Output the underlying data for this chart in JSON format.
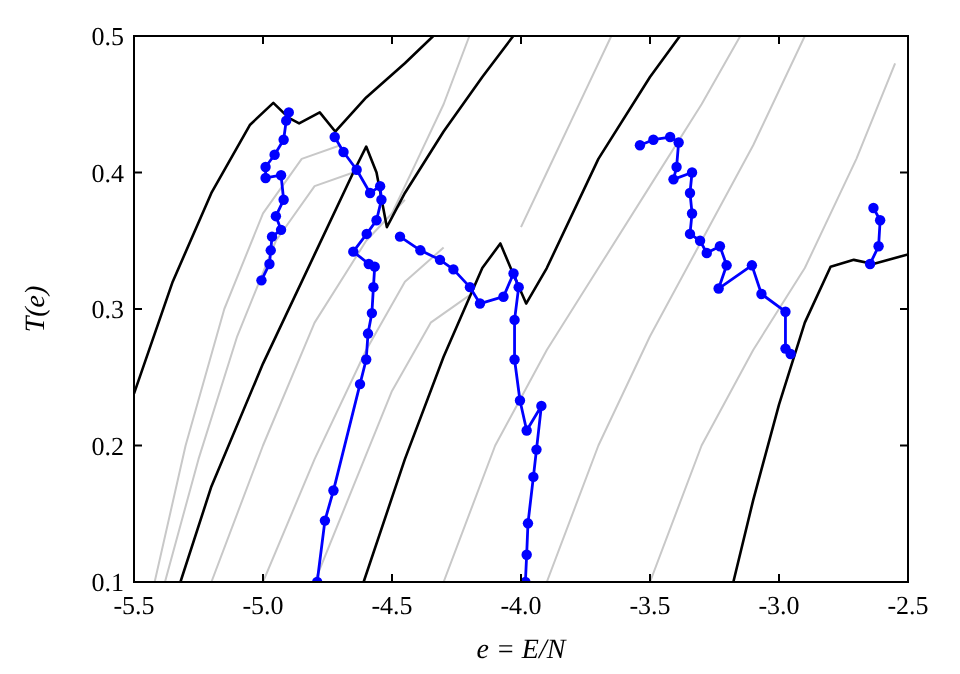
{
  "chart_data": {
    "type": "line",
    "xlabel": "e = E/N",
    "ylabel": "T(e)",
    "xlim": [
      -5.5,
      -2.5
    ],
    "ylim": [
      0.1,
      0.5
    ],
    "xticks": [
      {
        "value": -5.5,
        "label": "-5.5"
      },
      {
        "value": -5,
        "label": "-5.0"
      },
      {
        "value": -4.5,
        "label": "-4.5"
      },
      {
        "value": -4,
        "label": "-4.0"
      },
      {
        "value": -3.5,
        "label": "-3.5"
      },
      {
        "value": -3,
        "label": "-3.0"
      },
      {
        "value": -2.5,
        "label": "-2.5"
      }
    ],
    "yticks": [
      0.1,
      0.2,
      0.3,
      0.4,
      0.5
    ],
    "grid": false,
    "series": [
      {
        "color": "#c8c8c8",
        "marker": "none",
        "x": [
          -5.42,
          -5.3,
          -5.15,
          -5.0,
          -4.85,
          -4.7
        ],
        "values": [
          0.1,
          0.2,
          0.3,
          0.37,
          0.41,
          0.42
        ]
      },
      {
        "color": "#c8c8c8",
        "marker": "none",
        "x": [
          -5.38,
          -5.25,
          -5.1,
          -4.95,
          -4.8,
          -4.65
        ],
        "values": [
          0.1,
          0.19,
          0.28,
          0.35,
          0.39,
          0.4
        ]
      },
      {
        "color": "#c8c8c8",
        "marker": "none",
        "x": [
          -5.2,
          -5.0,
          -4.8,
          -4.6,
          -4.45
        ],
        "values": [
          0.1,
          0.2,
          0.29,
          0.35,
          0.38
        ]
      },
      {
        "color": "#c8c8c8",
        "marker": "none",
        "x": [
          -5.0,
          -4.8,
          -4.6,
          -4.45,
          -4.3
        ],
        "values": [
          0.1,
          0.19,
          0.27,
          0.32,
          0.345
        ]
      },
      {
        "color": "#c8c8c8",
        "marker": "none",
        "x": [
          -4.8,
          -4.65,
          -4.5,
          -4.35,
          -4.2
        ],
        "values": [
          0.1,
          0.17,
          0.24,
          0.29,
          0.31
        ]
      },
      {
        "color": "#c8c8c8",
        "marker": "none",
        "x": [
          -4.5,
          -4.4,
          -4.3,
          -4.2
        ],
        "values": [
          0.37,
          0.41,
          0.45,
          0.5
        ]
      },
      {
        "color": "#c8c8c8",
        "marker": "none",
        "x": [
          -4.0,
          -3.9,
          -3.8,
          -3.65
        ],
        "values": [
          0.36,
          0.4,
          0.44,
          0.5
        ]
      },
      {
        "color": "#c8c8c8",
        "marker": "none",
        "x": [
          -4.3,
          -4.1,
          -3.9,
          -3.7,
          -3.5,
          -3.3,
          -3.15
        ],
        "values": [
          0.1,
          0.2,
          0.27,
          0.33,
          0.39,
          0.45,
          0.5
        ]
      },
      {
        "color": "#c8c8c8",
        "marker": "none",
        "x": [
          -3.9,
          -3.7,
          -3.5,
          -3.3,
          -3.1,
          -2.9
        ],
        "values": [
          0.1,
          0.2,
          0.28,
          0.35,
          0.42,
          0.5
        ]
      },
      {
        "color": "#c8c8c8",
        "marker": "none",
        "x": [
          -3.5,
          -3.3,
          -3.1,
          -2.9,
          -2.7,
          -2.55
        ],
        "values": [
          0.1,
          0.2,
          0.27,
          0.33,
          0.41,
          0.48
        ]
      },
      {
        "color": "#000000",
        "marker": "none",
        "x": [
          -5.5,
          -5.35,
          -5.2,
          -5.05,
          -4.96,
          -4.9,
          -4.86,
          -4.78,
          -4.72,
          -4.6,
          -4.45,
          -4.34
        ],
        "values": [
          0.238,
          0.32,
          0.385,
          0.435,
          0.451,
          0.44,
          0.436,
          0.444,
          0.43,
          0.455,
          0.48,
          0.5
        ]
      },
      {
        "color": "#000000",
        "marker": "none",
        "x": [
          -5.32,
          -5.2,
          -5.0,
          -4.8,
          -4.65,
          -4.6,
          -4.56,
          -4.52,
          -4.45,
          -4.3,
          -4.15,
          -4.03
        ],
        "values": [
          0.1,
          0.17,
          0.26,
          0.34,
          0.4,
          0.419,
          0.4,
          0.36,
          0.385,
          0.43,
          0.47,
          0.5
        ]
      },
      {
        "color": "#000000",
        "marker": "none",
        "x": [
          -4.61,
          -4.45,
          -4.3,
          -4.15,
          -4.08,
          -4.04,
          -3.98,
          -3.9,
          -3.7,
          -3.5,
          -3.384
        ],
        "values": [
          0.1,
          0.19,
          0.265,
          0.33,
          0.348,
          0.33,
          0.304,
          0.33,
          0.41,
          0.47,
          0.5
        ]
      },
      {
        "color": "#000000",
        "marker": "none",
        "x": [
          -3.177,
          -3.1,
          -3.0,
          -2.9,
          -2.8,
          -2.71,
          -2.635,
          -2.5
        ],
        "values": [
          0.1,
          0.16,
          0.23,
          0.29,
          0.331,
          0.336,
          0.333,
          0.34
        ]
      },
      {
        "color": "#0000ff",
        "marker": "circle",
        "x": [
          -4.9,
          -4.91,
          -4.92,
          -4.955,
          -4.99,
          -4.99,
          -4.93,
          -4.92,
          -4.95,
          -4.93,
          -4.965,
          -4.97,
          -4.975,
          -5.006
        ],
        "values": [
          0.444,
          0.438,
          0.424,
          0.413,
          0.404,
          0.396,
          0.398,
          0.38,
          0.368,
          0.358,
          0.353,
          0.343,
          0.333,
          0.321
        ]
      },
      {
        "color": "#0000ff",
        "marker": "circle",
        "x": [
          -4.79,
          -4.76,
          -4.727,
          -4.624,
          -4.6,
          -4.593,
          -4.578,
          -4.572,
          -4.567,
          -4.59,
          -4.65,
          -4.598,
          -4.56,
          -4.541,
          -4.546,
          -4.585,
          -4.637,
          -4.688,
          -4.722
        ],
        "values": [
          0.1,
          0.145,
          0.167,
          0.245,
          0.263,
          0.282,
          0.297,
          0.316,
          0.331,
          0.333,
          0.342,
          0.355,
          0.365,
          0.38,
          0.39,
          0.385,
          0.402,
          0.415,
          0.426
        ]
      },
      {
        "color": "#0000ff",
        "marker": "circle",
        "x": [
          -4.469,
          -4.39,
          -4.314,
          -4.262,
          -4.198,
          -4.159,
          -4.068,
          -4.029,
          -4.009,
          -4.025,
          -4.025,
          -4.004,
          -3.978,
          -3.921,
          -3.94,
          -3.952,
          -3.973,
          -3.978,
          -3.983
        ],
        "values": [
          0.353,
          0.343,
          0.336,
          0.329,
          0.316,
          0.304,
          0.309,
          0.326,
          0.316,
          0.292,
          0.263,
          0.233,
          0.211,
          0.229,
          0.197,
          0.177,
          0.143,
          0.12,
          0.1
        ]
      },
      {
        "color": "#0000ff",
        "marker": "circle",
        "x": [
          -3.539,
          -3.487,
          -3.422,
          -3.389,
          -3.397,
          -3.409,
          -3.337,
          -3.345,
          -3.337,
          -3.345,
          -3.306,
          -3.28,
          -3.229,
          -3.203,
          -3.234,
          -3.105,
          -3.068,
          -2.975,
          -2.975,
          -2.955
        ],
        "values": [
          0.42,
          0.424,
          0.426,
          0.422,
          0.404,
          0.395,
          0.4,
          0.385,
          0.37,
          0.355,
          0.35,
          0.341,
          0.346,
          0.332,
          0.315,
          0.332,
          0.311,
          0.298,
          0.271,
          0.267
        ]
      },
      {
        "color": "#0000ff",
        "marker": "circle",
        "x": [
          -2.634,
          -2.608,
          -2.614,
          -2.647
        ],
        "values": [
          0.374,
          0.365,
          0.346,
          0.333
        ]
      }
    ]
  }
}
